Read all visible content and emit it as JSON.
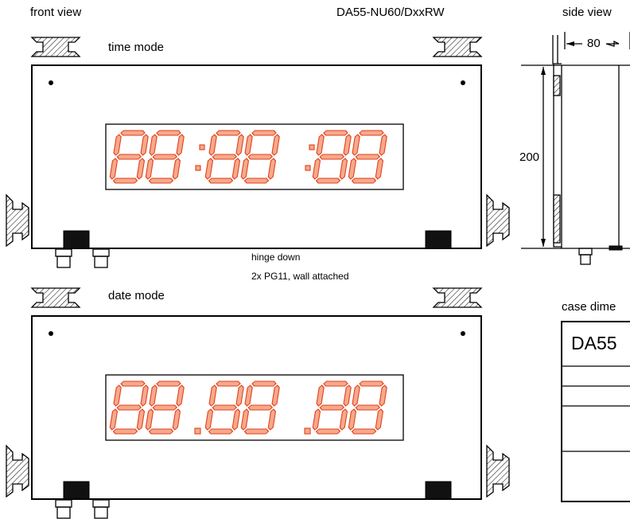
{
  "header": {
    "left": "front view",
    "model": "DA55-NU60/DxxRW",
    "right": "side view"
  },
  "front": {
    "time_label": "time mode",
    "date_label": "date mode",
    "note_1": "hinge down",
    "note_2": "2x PG11, wall attached"
  },
  "side": {
    "width": 80,
    "height": 200
  },
  "case": {
    "title": "case dime",
    "table_head": "DA55"
  }
}
